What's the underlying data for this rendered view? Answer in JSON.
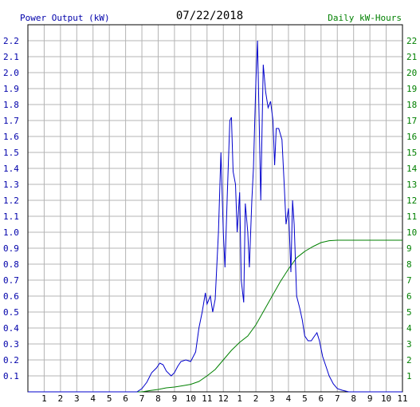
{
  "chart_data": {
    "type": "line",
    "title": "07/22/2018",
    "left_axis_title": "Power Output (kW)",
    "right_axis_title": "Daily kW-Hours",
    "left_ylim": [
      0,
      2.3
    ],
    "right_ylim": [
      0,
      23
    ],
    "xlim": [
      0,
      23
    ],
    "left_ticks": [
      "0.1",
      "0.2",
      "0.3",
      "0.4",
      "0.5",
      "0.6",
      "0.7",
      "0.8",
      "0.9",
      "1.0",
      "1.1",
      "1.2",
      "1.3",
      "1.4",
      "1.5",
      "1.6",
      "1.7",
      "1.8",
      "1.9",
      "2.0",
      "2.1",
      "2.2"
    ],
    "right_ticks": [
      "1",
      "2",
      "3",
      "4",
      "5",
      "6",
      "7",
      "8",
      "9",
      "10",
      "11",
      "12",
      "13",
      "14",
      "15",
      "16",
      "17",
      "18",
      "19",
      "20",
      "21",
      "22"
    ],
    "x_ticks": [
      "1",
      "2",
      "3",
      "4",
      "5",
      "6",
      "7",
      "8",
      "9",
      "10",
      "11",
      "12",
      "1",
      "2",
      "3",
      "4",
      "5",
      "6",
      "7",
      "8",
      "9",
      "10",
      "11"
    ],
    "grid": true,
    "colors": {
      "power": "#0000cc",
      "energy": "#008000",
      "grid": "#b4b4b4",
      "left_axis": "#0000aa",
      "right_axis": "#008000",
      "title": "#000000"
    },
    "series": [
      {
        "label": "Power Output (kW)",
        "axis": "left",
        "points": [
          [
            0,
            0
          ],
          [
            6.7,
            0
          ],
          [
            7.0,
            0.02
          ],
          [
            7.3,
            0.06
          ],
          [
            7.6,
            0.12
          ],
          [
            7.9,
            0.15
          ],
          [
            8.1,
            0.18
          ],
          [
            8.3,
            0.17
          ],
          [
            8.5,
            0.13
          ],
          [
            8.8,
            0.1
          ],
          [
            9.0,
            0.12
          ],
          [
            9.2,
            0.16
          ],
          [
            9.4,
            0.19
          ],
          [
            9.7,
            0.2
          ],
          [
            10.0,
            0.19
          ],
          [
            10.3,
            0.25
          ],
          [
            10.5,
            0.4
          ],
          [
            10.7,
            0.5
          ],
          [
            10.9,
            0.62
          ],
          [
            11.0,
            0.55
          ],
          [
            11.2,
            0.6
          ],
          [
            11.35,
            0.5
          ],
          [
            11.5,
            0.58
          ],
          [
            11.7,
            1.0
          ],
          [
            11.85,
            1.5
          ],
          [
            12.0,
            1.0
          ],
          [
            12.1,
            0.78
          ],
          [
            12.25,
            1.25
          ],
          [
            12.4,
            1.7
          ],
          [
            12.5,
            1.72
          ],
          [
            12.6,
            1.38
          ],
          [
            12.75,
            1.3
          ],
          [
            12.85,
            1.0
          ],
          [
            13.0,
            1.25
          ],
          [
            13.1,
            0.7
          ],
          [
            13.25,
            0.56
          ],
          [
            13.35,
            1.18
          ],
          [
            13.5,
            1.0
          ],
          [
            13.6,
            0.78
          ],
          [
            13.75,
            1.2
          ],
          [
            13.85,
            1.4
          ],
          [
            14.0,
            1.95
          ],
          [
            14.1,
            2.2
          ],
          [
            14.2,
            1.7
          ],
          [
            14.3,
            1.2
          ],
          [
            14.45,
            2.05
          ],
          [
            14.6,
            1.88
          ],
          [
            14.75,
            1.78
          ],
          [
            14.9,
            1.82
          ],
          [
            15.05,
            1.7
          ],
          [
            15.15,
            1.42
          ],
          [
            15.25,
            1.65
          ],
          [
            15.4,
            1.65
          ],
          [
            15.6,
            1.58
          ],
          [
            15.75,
            1.28
          ],
          [
            15.85,
            1.05
          ],
          [
            16.0,
            1.15
          ],
          [
            16.15,
            0.75
          ],
          [
            16.25,
            1.2
          ],
          [
            16.35,
            1.05
          ],
          [
            16.5,
            0.6
          ],
          [
            16.7,
            0.52
          ],
          [
            16.85,
            0.45
          ],
          [
            17.0,
            0.35
          ],
          [
            17.2,
            0.32
          ],
          [
            17.4,
            0.32
          ],
          [
            17.6,
            0.35
          ],
          [
            17.75,
            0.37
          ],
          [
            17.9,
            0.32
          ],
          [
            18.1,
            0.22
          ],
          [
            18.3,
            0.16
          ],
          [
            18.5,
            0.1
          ],
          [
            18.75,
            0.05
          ],
          [
            19.0,
            0.02
          ],
          [
            19.3,
            0.01
          ],
          [
            19.7,
            0.0
          ],
          [
            23,
            0
          ]
        ]
      },
      {
        "label": "Daily kW-Hours",
        "axis": "right",
        "points": [
          [
            0,
            0
          ],
          [
            7.0,
            0
          ],
          [
            7.5,
            0.08
          ],
          [
            8.0,
            0.15
          ],
          [
            8.5,
            0.25
          ],
          [
            9.0,
            0.3
          ],
          [
            9.5,
            0.38
          ],
          [
            10.0,
            0.47
          ],
          [
            10.5,
            0.65
          ],
          [
            11.0,
            1.0
          ],
          [
            11.5,
            1.4
          ],
          [
            12.0,
            2.0
          ],
          [
            12.5,
            2.6
          ],
          [
            13.0,
            3.1
          ],
          [
            13.5,
            3.5
          ],
          [
            14.0,
            4.2
          ],
          [
            14.5,
            5.1
          ],
          [
            15.0,
            6.0
          ],
          [
            15.5,
            6.9
          ],
          [
            16.0,
            7.7
          ],
          [
            16.5,
            8.4
          ],
          [
            17.0,
            8.8
          ],
          [
            17.5,
            9.1
          ],
          [
            18.0,
            9.35
          ],
          [
            18.5,
            9.47
          ],
          [
            19.0,
            9.5
          ],
          [
            23,
            9.5
          ]
        ]
      }
    ]
  }
}
